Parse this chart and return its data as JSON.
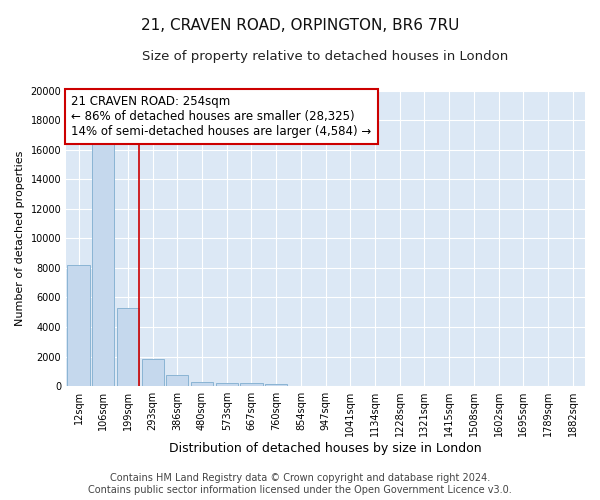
{
  "title": "21, CRAVEN ROAD, ORPINGTON, BR6 7RU",
  "subtitle": "Size of property relative to detached houses in London",
  "xlabel": "Distribution of detached houses by size in London",
  "ylabel": "Number of detached properties",
  "categories": [
    "12sqm",
    "106sqm",
    "199sqm",
    "293sqm",
    "386sqm",
    "480sqm",
    "573sqm",
    "667sqm",
    "760sqm",
    "854sqm",
    "947sqm",
    "1041sqm",
    "1134sqm",
    "1228sqm",
    "1321sqm",
    "1415sqm",
    "1508sqm",
    "1602sqm",
    "1695sqm",
    "1789sqm",
    "1882sqm"
  ],
  "values": [
    8200,
    16600,
    5300,
    1850,
    750,
    310,
    200,
    175,
    150,
    0,
    0,
    0,
    0,
    0,
    0,
    0,
    0,
    0,
    0,
    0,
    0
  ],
  "bar_color": "#c5d8ed",
  "bar_edge_color": "#8ab4d4",
  "vline_color": "#cc0000",
  "annotation_text": "21 CRAVEN ROAD: 254sqm\n← 86% of detached houses are smaller (28,325)\n14% of semi-detached houses are larger (4,584) →",
  "annotation_box_facecolor": "#ffffff",
  "annotation_box_edgecolor": "#cc0000",
  "ylim_max": 20000,
  "yticks": [
    0,
    2000,
    4000,
    6000,
    8000,
    10000,
    12000,
    14000,
    16000,
    18000,
    20000
  ],
  "bg_color": "#dce8f5",
  "grid_color": "#ffffff",
  "footer_line1": "Contains HM Land Registry data © Crown copyright and database right 2024.",
  "footer_line2": "Contains public sector information licensed under the Open Government Licence v3.0.",
  "title_fontsize": 11,
  "subtitle_fontsize": 9.5,
  "xlabel_fontsize": 9,
  "ylabel_fontsize": 8,
  "tick_fontsize": 7,
  "annotation_fontsize": 8.5,
  "footer_fontsize": 7
}
